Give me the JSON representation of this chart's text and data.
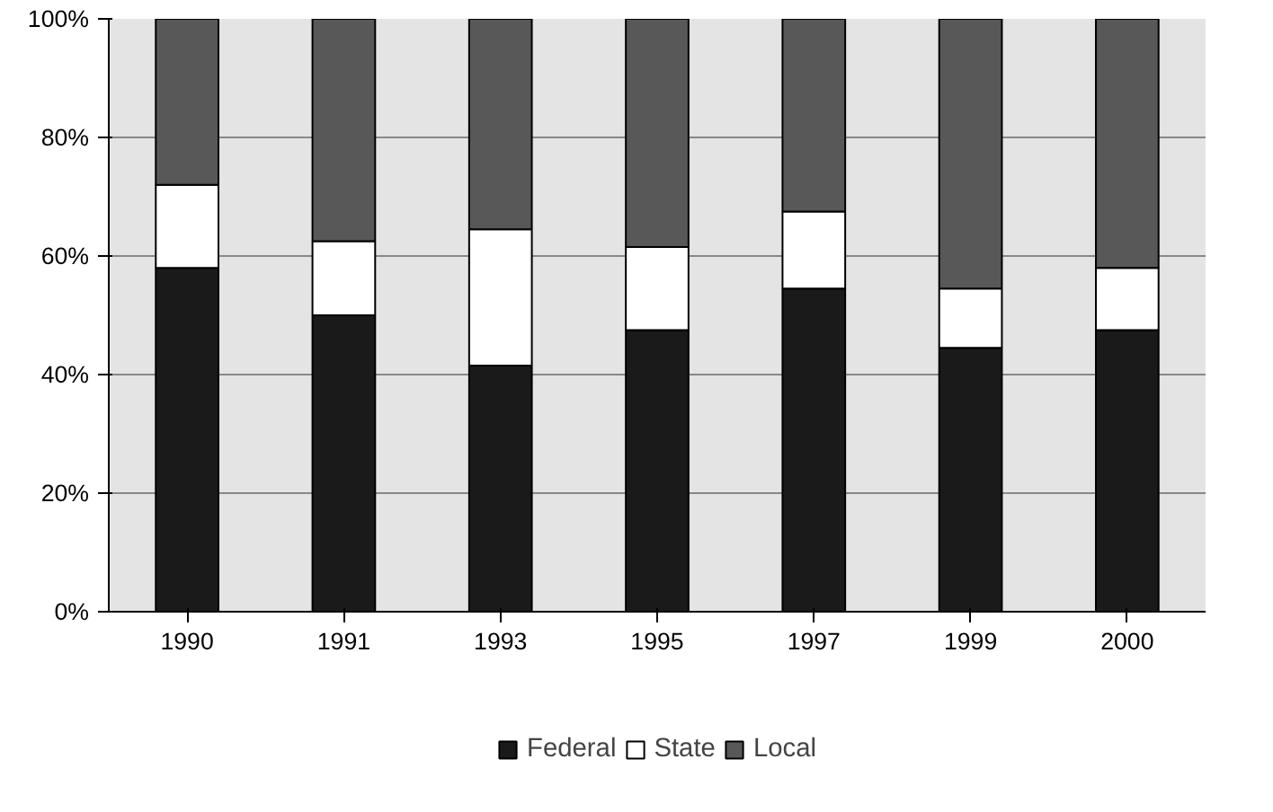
{
  "chart_data": {
    "type": "bar",
    "stacked": true,
    "categories": [
      "1990",
      "1991",
      "1993",
      "1995",
      "1997",
      "1999",
      "2000"
    ],
    "series": [
      {
        "name": "Federal",
        "color": "#1a1a1a",
        "values": [
          58,
          50,
          41.5,
          47.5,
          54.5,
          44.5,
          47.5
        ]
      },
      {
        "name": "State",
        "color": "#ffffff",
        "values": [
          14,
          12.5,
          23,
          14,
          13,
          10,
          10.5
        ]
      },
      {
        "name": "Local",
        "color": "#585858",
        "values": [
          28,
          37.5,
          35.5,
          38.5,
          32.5,
          45.5,
          42
        ]
      }
    ],
    "ylim": [
      0,
      100
    ],
    "yticks": [
      {
        "value": 0,
        "label": "0%"
      },
      {
        "value": 20,
        "label": "20%"
      },
      {
        "value": 40,
        "label": "40%"
      },
      {
        "value": 60,
        "label": "60%"
      },
      {
        "value": 80,
        "label": "80%"
      },
      {
        "value": 100,
        "label": "100%"
      }
    ],
    "grid": "y",
    "legend": "bottom"
  }
}
